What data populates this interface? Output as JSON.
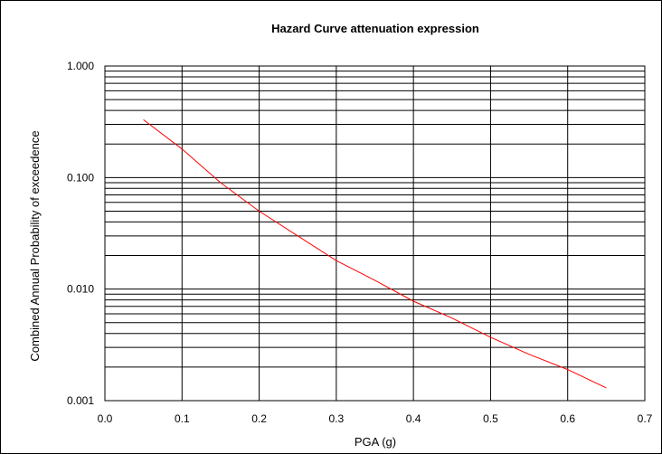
{
  "chart_data": {
    "type": "line",
    "title": "Hazard Curve attenuation expression",
    "xlabel": "PGA (g)",
    "ylabel": "Combined Annual Probability of exceedence",
    "xlim": [
      0.0,
      0.7
    ],
    "ylim": [
      0.001,
      1.0
    ],
    "yscale": "log",
    "grid": true,
    "legend": "none",
    "x_ticks": [
      "0.0",
      "0.1",
      "0.2",
      "0.3",
      "0.4",
      "0.5",
      "0.6",
      "0.7"
    ],
    "y_ticks": [
      "1.000",
      "0.100",
      "0.010",
      "0.001"
    ],
    "series": [
      {
        "color": "#ff0000",
        "x": [
          0.05,
          0.1,
          0.15,
          0.2,
          0.25,
          0.3,
          0.35,
          0.4,
          0.45,
          0.5,
          0.55,
          0.6,
          0.65
        ],
        "y": [
          0.33,
          0.18,
          0.09,
          0.05,
          0.03,
          0.018,
          0.012,
          0.0078,
          0.0055,
          0.0037,
          0.0026,
          0.0019,
          0.0013
        ]
      }
    ]
  }
}
